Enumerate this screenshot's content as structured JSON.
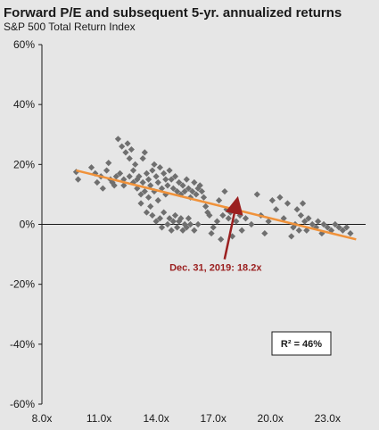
{
  "chart_data": {
    "type": "scatter",
    "title": "Forward P/E and subsequent 5-yr. annualized returns",
    "subtitle": "S&P 500 Total Return Index",
    "xlabel": "",
    "ylabel": "",
    "xlim": [
      8,
      25
    ],
    "ylim": [
      -60,
      60
    ],
    "x_ticks": [
      8,
      11,
      14,
      17,
      20,
      23
    ],
    "x_tick_labels": [
      "8.0x",
      "11.0x",
      "14.0x",
      "17.0x",
      "20.0x",
      "23.0x"
    ],
    "y_ticks": [
      60,
      40,
      20,
      0,
      -20,
      -40,
      -60
    ],
    "y_tick_labels": [
      "60%",
      "40%",
      "20%",
      "0%",
      "-20%",
      "-40%",
      "-60%"
    ],
    "series": [
      {
        "type": "scatter",
        "color": "#6f6f6f",
        "points": [
          [
            9.8,
            17.5
          ],
          [
            9.9,
            15
          ],
          [
            10.6,
            19
          ],
          [
            10.8,
            17
          ],
          [
            10.9,
            14
          ],
          [
            11.1,
            16
          ],
          [
            11.2,
            12
          ],
          [
            11.4,
            18
          ],
          [
            11.5,
            20.5
          ],
          [
            11.6,
            15
          ],
          [
            11.7,
            14
          ],
          [
            11.8,
            13
          ],
          [
            11.9,
            16
          ],
          [
            12.0,
            28.5
          ],
          [
            12.1,
            17
          ],
          [
            12.2,
            26
          ],
          [
            12.3,
            15
          ],
          [
            12.3,
            13
          ],
          [
            12.4,
            24
          ],
          [
            12.5,
            27
          ],
          [
            12.6,
            22
          ],
          [
            12.6,
            16
          ],
          [
            12.7,
            25
          ],
          [
            12.8,
            14
          ],
          [
            12.8,
            18
          ],
          [
            12.9,
            20
          ],
          [
            13.0,
            12
          ],
          [
            13.0,
            15
          ],
          [
            13.1,
            16
          ],
          [
            13.2,
            10
          ],
          [
            13.2,
            7
          ],
          [
            13.3,
            14
          ],
          [
            13.3,
            22
          ],
          [
            13.4,
            24
          ],
          [
            13.4,
            11
          ],
          [
            13.5,
            17
          ],
          [
            13.5,
            4
          ],
          [
            13.6,
            15
          ],
          [
            13.6,
            9
          ],
          [
            13.7,
            13
          ],
          [
            13.7,
            6
          ],
          [
            13.8,
            18
          ],
          [
            13.8,
            3
          ],
          [
            13.9,
            20
          ],
          [
            13.9,
            11
          ],
          [
            14.0,
            16
          ],
          [
            14.0,
            1
          ],
          [
            14.1,
            14
          ],
          [
            14.1,
            8
          ],
          [
            14.2,
            19
          ],
          [
            14.2,
            2
          ],
          [
            14.3,
            12
          ],
          [
            14.3,
            -1
          ],
          [
            14.4,
            17
          ],
          [
            14.4,
            4
          ],
          [
            14.5,
            15
          ],
          [
            14.5,
            10
          ],
          [
            14.6,
            13
          ],
          [
            14.6,
            0
          ],
          [
            14.7,
            18
          ],
          [
            14.7,
            2
          ],
          [
            14.8,
            15
          ],
          [
            14.8,
            -2
          ],
          [
            14.9,
            12
          ],
          [
            14.9,
            1
          ],
          [
            15.0,
            16
          ],
          [
            15.0,
            3
          ],
          [
            15.1,
            11
          ],
          [
            15.1,
            -1
          ],
          [
            15.2,
            14
          ],
          [
            15.2,
            1
          ],
          [
            15.3,
            10
          ],
          [
            15.3,
            2
          ],
          [
            15.4,
            13
          ],
          [
            15.4,
            -2
          ],
          [
            15.5,
            11
          ],
          [
            15.5,
            0
          ],
          [
            15.6,
            15
          ],
          [
            15.6,
            -1
          ],
          [
            15.7,
            12
          ],
          [
            15.7,
            2
          ],
          [
            15.8,
            9
          ],
          [
            15.8,
            0
          ],
          [
            15.9,
            11
          ],
          [
            16.0,
            14
          ],
          [
            16.0,
            -2
          ],
          [
            16.1,
            10
          ],
          [
            16.2,
            12
          ],
          [
            16.2,
            0
          ],
          [
            16.3,
            13
          ],
          [
            16.4,
            11
          ],
          [
            16.5,
            9
          ],
          [
            16.6,
            6
          ],
          [
            16.7,
            4
          ],
          [
            16.8,
            3
          ],
          [
            16.9,
            -3
          ],
          [
            17.0,
            -1
          ],
          [
            17.2,
            1
          ],
          [
            17.3,
            8
          ],
          [
            17.4,
            -5
          ],
          [
            17.5,
            3
          ],
          [
            17.6,
            11
          ],
          [
            17.7,
            5
          ],
          [
            17.8,
            2
          ],
          [
            17.9,
            4
          ],
          [
            18.0,
            -4
          ],
          [
            18.2,
            1
          ],
          [
            18.4,
            3
          ],
          [
            18.5,
            -2
          ],
          [
            18.7,
            2
          ],
          [
            19.0,
            0
          ],
          [
            19.3,
            10
          ],
          [
            19.5,
            3
          ],
          [
            19.7,
            -3
          ],
          [
            19.9,
            1
          ],
          [
            20.1,
            8
          ],
          [
            20.3,
            5
          ],
          [
            20.5,
            9
          ],
          [
            20.7,
            2
          ],
          [
            20.9,
            7
          ],
          [
            21.1,
            -4
          ],
          [
            21.2,
            -1
          ],
          [
            21.3,
            0
          ],
          [
            21.4,
            5
          ],
          [
            21.5,
            -2
          ],
          [
            21.6,
            3
          ],
          [
            21.7,
            7
          ],
          [
            21.8,
            1
          ],
          [
            21.9,
            -2
          ],
          [
            22.0,
            2
          ],
          [
            22.2,
            0
          ],
          [
            22.4,
            -1
          ],
          [
            22.5,
            1
          ],
          [
            22.7,
            -3
          ],
          [
            22.8,
            0
          ],
          [
            23.0,
            -1
          ],
          [
            23.2,
            -2
          ],
          [
            23.4,
            0
          ],
          [
            23.6,
            -1
          ],
          [
            23.8,
            -2
          ],
          [
            24.0,
            -1
          ],
          [
            24.2,
            -3
          ]
        ]
      },
      {
        "type": "line",
        "color": "#f0923a",
        "points": [
          [
            9.8,
            18
          ],
          [
            24.5,
            -5
          ]
        ]
      }
    ],
    "annotations": [
      {
        "text": "Dec. 31, 2019: 18.2x",
        "point": [
          18.2,
          6.5
        ]
      }
    ],
    "r_squared_label": "R² = 46%"
  }
}
